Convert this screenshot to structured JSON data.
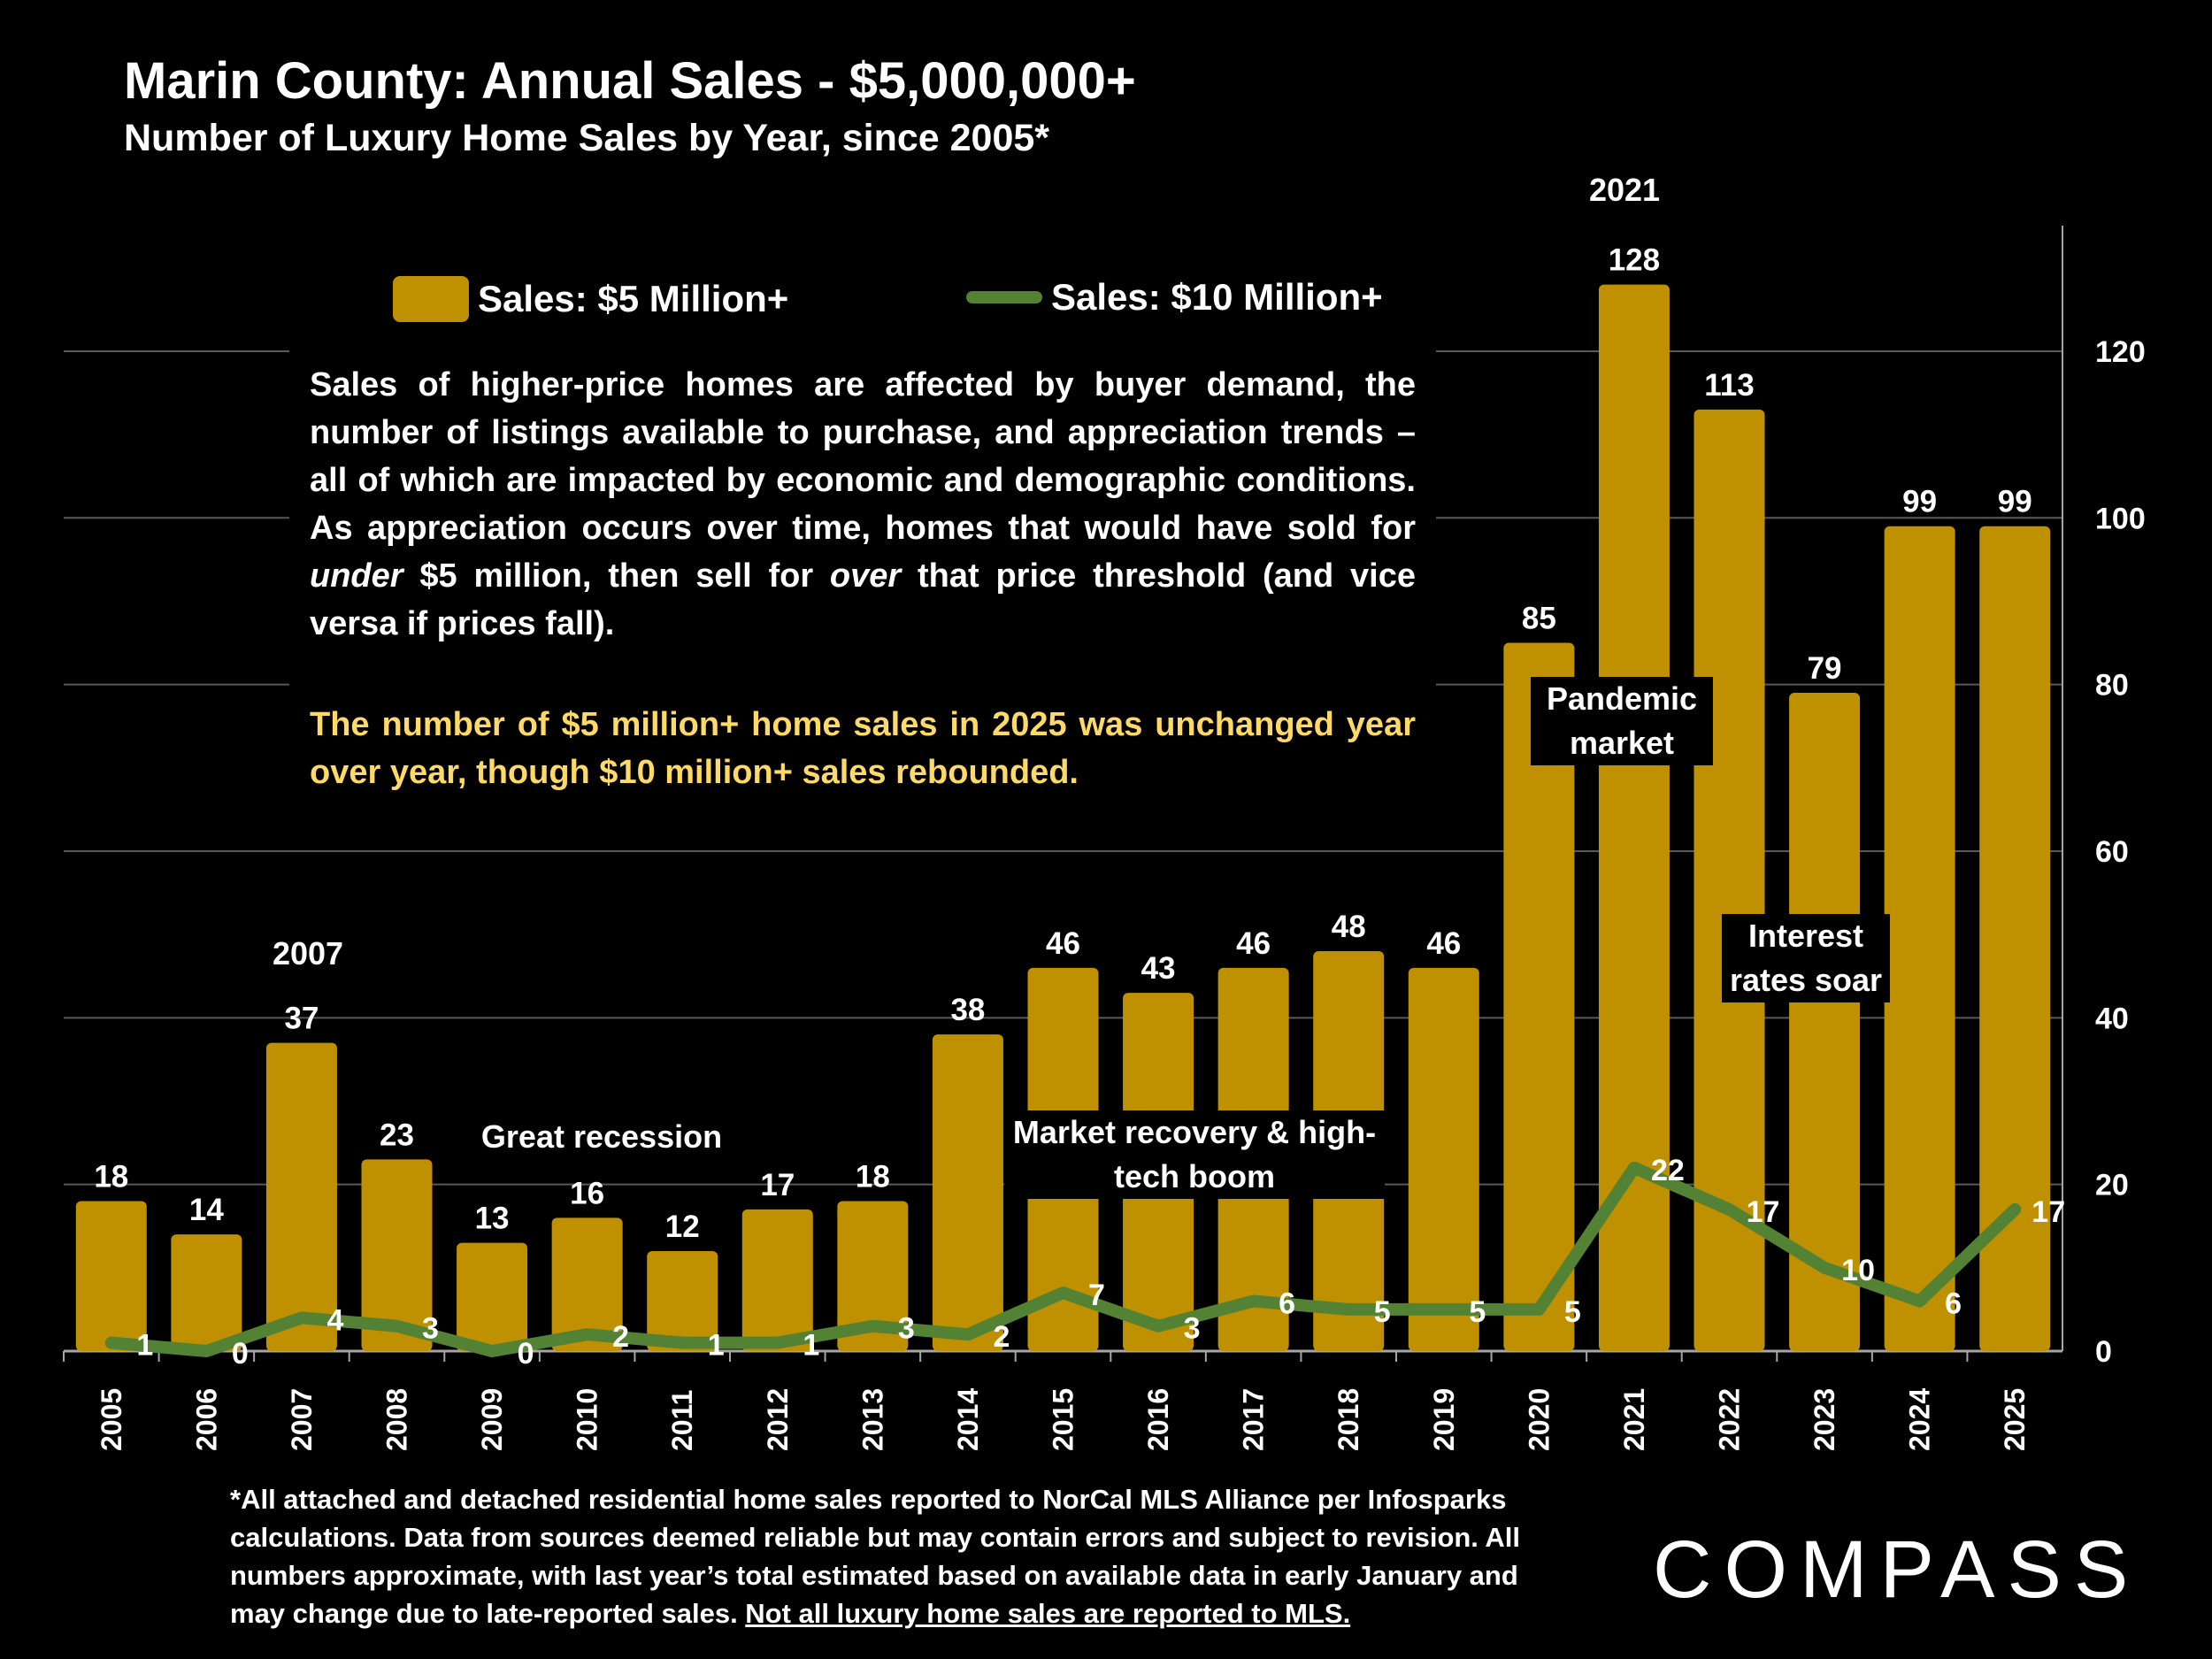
{
  "title": "Marin County:  Annual Sales - $5,000,000+",
  "subtitle": "Number of Luxury Home Sales by Year, since 2005*",
  "text_box": {
    "body_1": "Sales of higher-price homes are affected by buyer demand, the number of listings available to purchase, and appreciation trends – all of which are impacted by economic and demographic conditions. As appreciation occurs over time, homes that would have sold for ",
    "em_1": "under",
    "body_2": " $5 million, then sell for ",
    "em_2": "over",
    "body_3": " that price threshold (and vice versa if prices fall).",
    "highlight": "The number of $5 million+ home sales in 2025 was unchanged year over year, though $10 million+ sales rebounded."
  },
  "annotations": {
    "year_2007": "2007",
    "year_2021": "2021",
    "great_recession": "Great recession",
    "market_recovery": "Market recovery & high-tech boom",
    "pandemic": "Pandemic market",
    "interest_rates": "Interest rates soar"
  },
  "footer": {
    "text": "*All attached and detached residential home sales reported to NorCal MLS Alliance per Infosparks calculations. Data from sources deemed reliable but may contain errors and subject to revision. All numbers approximate, with last year’s total estimated based on available data in early January and may change due to late-reported sales. ",
    "underlined": "Not all luxury home sales are reported to MLS."
  },
  "logo": "COMPASS",
  "chart_data": {
    "type": "bar+line",
    "title": "Marin County:  Annual Sales - $5,000,000+",
    "subtitle": "Number of Luxury Home Sales by Year, since 2005*",
    "categories": [
      "2005",
      "2006",
      "2007",
      "2008",
      "2009",
      "2010",
      "2011",
      "2012",
      "2013",
      "2014",
      "2015",
      "2016",
      "2017",
      "2018",
      "2019",
      "2020",
      "2021",
      "2022",
      "2023",
      "2024",
      "2025"
    ],
    "series": [
      {
        "name": "Sales:  $5 Million+",
        "type": "bar",
        "color": "#BF9000",
        "values": [
          18,
          14,
          37,
          23,
          13,
          16,
          12,
          17,
          18,
          38,
          46,
          43,
          46,
          48,
          46,
          85,
          128,
          113,
          79,
          99,
          99
        ]
      },
      {
        "name": "Sales: $10 Million+",
        "type": "line",
        "color": "#548235",
        "values": [
          1,
          0,
          4,
          3,
          0,
          2,
          1,
          1,
          3,
          2,
          7,
          3,
          6,
          5,
          5,
          5,
          22,
          17,
          10,
          6,
          17
        ]
      }
    ],
    "y_axis": {
      "position": "right",
      "ylim": [
        0,
        135
      ],
      "ticks": [
        0,
        20,
        40,
        60,
        80,
        100,
        120
      ]
    },
    "grid": true,
    "legend": "top"
  }
}
